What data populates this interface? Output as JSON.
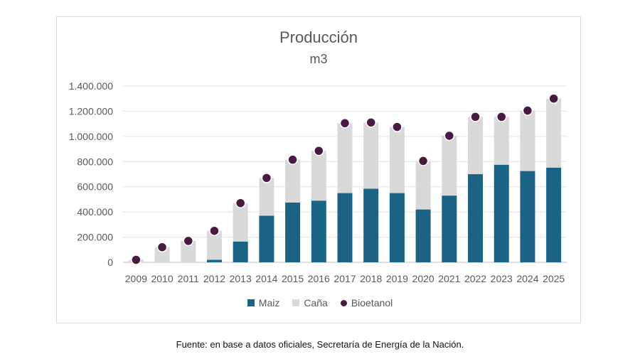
{
  "chart_data": {
    "type": "bar",
    "title": "Producción",
    "subtitle": "m3",
    "categories": [
      "2009",
      "2010",
      "2011",
      "2012",
      "2013",
      "2014",
      "2015",
      "2016",
      "2017",
      "2018",
      "2019",
      "2020",
      "2021",
      "2022",
      "2023",
      "2024",
      "2025"
    ],
    "series": [
      {
        "name": "Maiz",
        "kind": "stacked-bar",
        "color": "#1b6385",
        "values": [
          0,
          0,
          0,
          20000,
          165000,
          370000,
          475000,
          490000,
          550000,
          585000,
          550000,
          420000,
          530000,
          700000,
          775000,
          725000,
          752000
        ]
      },
      {
        "name": "Caña",
        "kind": "stacked-bar",
        "color": "#d9d9d9",
        "values": [
          20000,
          120000,
          170000,
          230000,
          305000,
          300000,
          340000,
          395000,
          555000,
          525000,
          525000,
          385000,
          475000,
          455000,
          380000,
          480000,
          548000
        ]
      },
      {
        "name": "Bioetanol",
        "kind": "dot",
        "color": "#4a1942",
        "values": [
          20000,
          120000,
          170000,
          250000,
          470000,
          670000,
          815000,
          885000,
          1105000,
          1110000,
          1075000,
          805000,
          1005000,
          1155000,
          1155000,
          1205000,
          1300000
        ]
      }
    ],
    "ylim": [
      0,
      1400000
    ],
    "yticks": [
      0,
      200000,
      400000,
      600000,
      800000,
      1000000,
      1200000,
      1400000
    ],
    "ytick_labels": [
      "0",
      "200.000",
      "400.000",
      "600.000",
      "800.000",
      "1.000.000",
      "1.200.000",
      "1.400.000"
    ],
    "grid": true,
    "legend_position": "bottom"
  },
  "source_note": "Fuente: en base a datos oficiales, Secretaría de Energía de la Nación."
}
